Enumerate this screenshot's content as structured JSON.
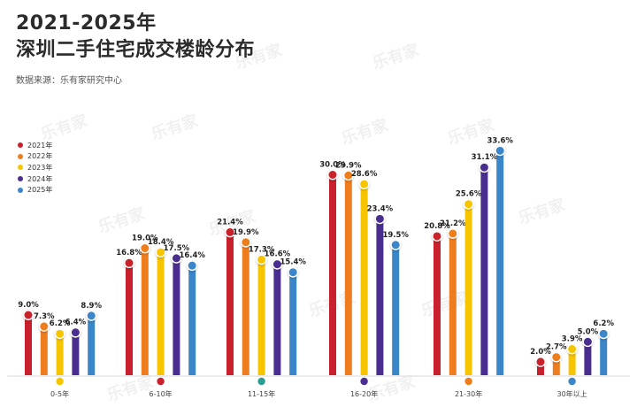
{
  "title_line1": "2021-2025年",
  "title_line2": "深圳二手住宅成交楼龄分布",
  "source": "数据来源：乐有家研究中心",
  "watermark": "乐有家",
  "chart_data": {
    "type": "bar",
    "title": "2021-2025年 深圳二手住宅成交楼龄分布",
    "categories": [
      "0-5年",
      "6-10年",
      "11-15年",
      "16-20年",
      "21-30年",
      "30年以上"
    ],
    "value_suffix": "%",
    "ylim": [
      0,
      35
    ],
    "grid": false,
    "legend": "left",
    "series": [
      {
        "name": "2021年",
        "color": "#c8202c",
        "values": [
          9.0,
          16.8,
          21.4,
          30.0,
          20.8,
          2.0
        ]
      },
      {
        "name": "2022年",
        "color": "#ee7d1f",
        "values": [
          7.3,
          19.0,
          19.9,
          29.9,
          21.2,
          2.7
        ]
      },
      {
        "name": "2023年",
        "color": "#f7c500",
        "values": [
          6.2,
          18.4,
          17.3,
          28.6,
          25.6,
          3.9
        ]
      },
      {
        "name": "2024年",
        "color": "#4a2e8f",
        "values": [
          6.4,
          17.5,
          16.6,
          23.4,
          31.1,
          5.0
        ]
      },
      {
        "name": "2025年",
        "color": "#3a86c8",
        "values": [
          8.9,
          16.4,
          15.4,
          19.5,
          33.6,
          6.2
        ]
      }
    ],
    "category_marker_colors": [
      "#f7c500",
      "#c8202c",
      "#2a9d8f",
      "#4a2e8f",
      "#ee7d1f",
      "#3a86c8"
    ]
  }
}
